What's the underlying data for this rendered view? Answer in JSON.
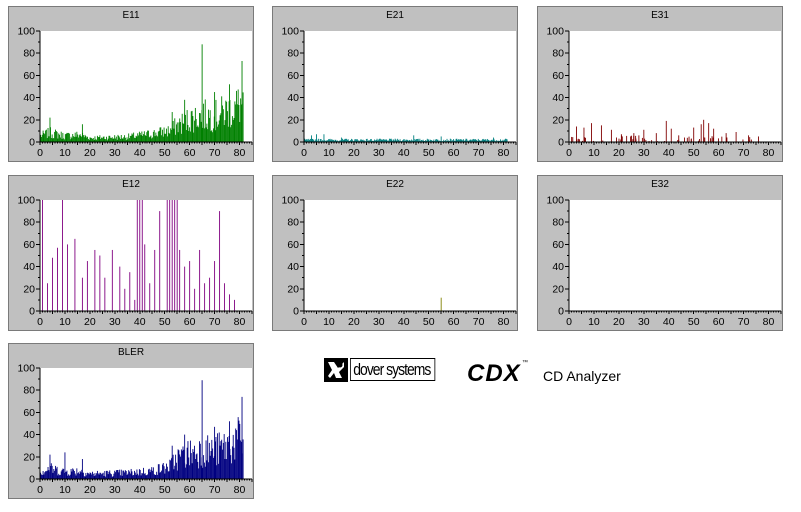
{
  "brand": {
    "logo_text": "dover systems",
    "product": "CDX",
    "trademark": "™",
    "subtitle": "CD Analyzer"
  },
  "chart_data": [
    {
      "type": "bar",
      "title": "E11",
      "color": "#008000",
      "xlim": [
        0,
        85
      ],
      "ylim": [
        0,
        100
      ],
      "xticks": [
        0,
        10,
        20,
        30,
        40,
        50,
        60,
        70,
        80
      ],
      "yticks": [
        0,
        20,
        40,
        60,
        80,
        100
      ],
      "profile": [
        [
          0,
          6
        ],
        [
          4,
          9
        ],
        [
          10,
          6
        ],
        [
          16,
          7
        ],
        [
          20,
          4
        ],
        [
          35,
          5
        ],
        [
          45,
          8
        ],
        [
          52,
          11
        ],
        [
          55,
          16
        ],
        [
          60,
          22
        ],
        [
          65,
          26
        ],
        [
          70,
          25
        ],
        [
          75,
          30
        ],
        [
          80,
          36
        ]
      ],
      "spikes": [
        [
          4,
          22
        ],
        [
          17,
          16
        ],
        [
          53,
          27
        ],
        [
          58,
          38
        ],
        [
          65,
          88
        ],
        [
          70,
          45
        ],
        [
          76,
          52
        ],
        [
          81,
          73
        ]
      ]
    },
    {
      "type": "bar",
      "title": "E21",
      "color": "#008080",
      "xlim": [
        0,
        85
      ],
      "ylim": [
        0,
        100
      ],
      "xticks": [
        0,
        10,
        20,
        30,
        40,
        50,
        60,
        70,
        80
      ],
      "yticks": [
        0,
        20,
        40,
        60,
        80,
        100
      ],
      "profile": [
        [
          0,
          2
        ],
        [
          10,
          2
        ],
        [
          40,
          2
        ],
        [
          80,
          2
        ]
      ],
      "spikes": [
        [
          3,
          6
        ],
        [
          5,
          7
        ],
        [
          8,
          7
        ],
        [
          15,
          4
        ],
        [
          44,
          6
        ],
        [
          55,
          5
        ],
        [
          76,
          4
        ]
      ]
    },
    {
      "type": "bar",
      "title": "E31",
      "color": "#800000",
      "xlim": [
        0,
        85
      ],
      "ylim": [
        0,
        100
      ],
      "xticks": [
        0,
        10,
        20,
        30,
        40,
        50,
        60,
        70,
        80
      ],
      "yticks": [
        0,
        20,
        40,
        60,
        80,
        100
      ],
      "profile": [
        [
          0,
          0
        ],
        [
          85,
          0
        ]
      ],
      "spikes": [
        [
          3,
          14
        ],
        [
          6,
          13
        ],
        [
          9,
          17
        ],
        [
          13,
          15
        ],
        [
          17,
          11
        ],
        [
          21,
          7
        ],
        [
          26,
          8
        ],
        [
          30,
          11
        ],
        [
          35,
          8
        ],
        [
          39,
          19
        ],
        [
          41,
          12
        ],
        [
          44,
          6
        ],
        [
          50,
          13
        ],
        [
          53,
          16
        ],
        [
          54,
          20
        ],
        [
          56,
          17
        ],
        [
          58,
          12
        ],
        [
          63,
          8
        ],
        [
          67,
          9
        ],
        [
          72,
          6
        ],
        [
          76,
          5
        ]
      ]
    },
    {
      "type": "bar",
      "title": "E12",
      "color": "#800080",
      "xlim": [
        0,
        85
      ],
      "ylim": [
        0,
        100
      ],
      "xticks": [
        0,
        10,
        20,
        30,
        40,
        50,
        60,
        70,
        80
      ],
      "yticks": [
        0,
        20,
        40,
        60,
        80,
        100
      ],
      "profile": [
        [
          0,
          0
        ],
        [
          85,
          0
        ]
      ],
      "spikes": [
        [
          1,
          100
        ],
        [
          3,
          25
        ],
        [
          5,
          48
        ],
        [
          7,
          57
        ],
        [
          9,
          100
        ],
        [
          11,
          60
        ],
        [
          14,
          65
        ],
        [
          17,
          30
        ],
        [
          19,
          45
        ],
        [
          22,
          55
        ],
        [
          24,
          50
        ],
        [
          26,
          30
        ],
        [
          29,
          55
        ],
        [
          32,
          40
        ],
        [
          34,
          20
        ],
        [
          36,
          35
        ],
        [
          38,
          10
        ],
        [
          39,
          100
        ],
        [
          40,
          100
        ],
        [
          41,
          100
        ],
        [
          42,
          60
        ],
        [
          44,
          25
        ],
        [
          46,
          55
        ],
        [
          48,
          90
        ],
        [
          51,
          100
        ],
        [
          52,
          100
        ],
        [
          53,
          100
        ],
        [
          54,
          100
        ],
        [
          55,
          100
        ],
        [
          56,
          55
        ],
        [
          58,
          40
        ],
        [
          60,
          45
        ],
        [
          62,
          20
        ],
        [
          64,
          55
        ],
        [
          66,
          25
        ],
        [
          68,
          30
        ],
        [
          70,
          45
        ],
        [
          72,
          90
        ],
        [
          74,
          25
        ],
        [
          76,
          15
        ],
        [
          78,
          10
        ]
      ]
    },
    {
      "type": "bar",
      "title": "E22",
      "color": "#808000",
      "xlim": [
        0,
        85
      ],
      "ylim": [
        0,
        100
      ],
      "xticks": [
        0,
        10,
        20,
        30,
        40,
        50,
        60,
        70,
        80
      ],
      "yticks": [
        0,
        20,
        40,
        60,
        80,
        100
      ],
      "profile": [
        [
          0,
          0
        ],
        [
          85,
          0
        ]
      ],
      "spikes": [
        [
          55,
          12
        ]
      ]
    },
    {
      "type": "bar",
      "title": "E32",
      "color": "#000000",
      "xlim": [
        0,
        85
      ],
      "ylim": [
        0,
        100
      ],
      "xticks": [
        0,
        10,
        20,
        30,
        40,
        50,
        60,
        70,
        80
      ],
      "yticks": [
        0,
        20,
        40,
        60,
        80,
        100
      ],
      "profile": [
        [
          0,
          0
        ],
        [
          85,
          0
        ]
      ],
      "spikes": []
    },
    {
      "type": "bar",
      "title": "BLER",
      "color": "#000080",
      "xlim": [
        0,
        85
      ],
      "ylim": [
        0,
        100
      ],
      "xticks": [
        0,
        10,
        20,
        30,
        40,
        50,
        60,
        70,
        80
      ],
      "yticks": [
        0,
        20,
        40,
        60,
        80,
        100
      ],
      "profile": [
        [
          0,
          7
        ],
        [
          4,
          10
        ],
        [
          10,
          7
        ],
        [
          16,
          8
        ],
        [
          20,
          5
        ],
        [
          35,
          6
        ],
        [
          45,
          8
        ],
        [
          52,
          12
        ],
        [
          55,
          20
        ],
        [
          60,
          25
        ],
        [
          65,
          28
        ],
        [
          70,
          27
        ],
        [
          75,
          32
        ],
        [
          80,
          38
        ]
      ],
      "spikes": [
        [
          4,
          22
        ],
        [
          10,
          24
        ],
        [
          17,
          18
        ],
        [
          53,
          30
        ],
        [
          58,
          40
        ],
        [
          65,
          89
        ],
        [
          70,
          47
        ],
        [
          76,
          52
        ],
        [
          81,
          74
        ]
      ]
    }
  ]
}
